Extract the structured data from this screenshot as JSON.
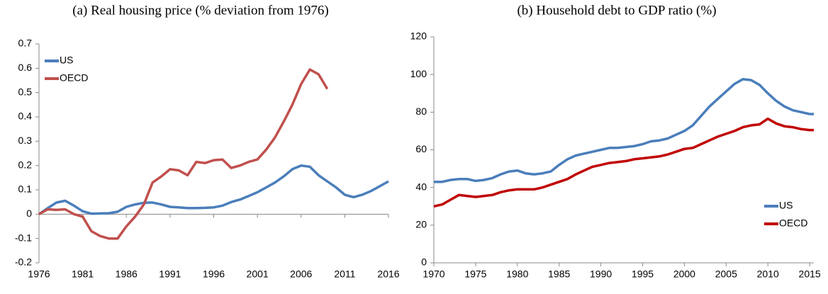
{
  "chart_data": [
    {
      "type": "line",
      "title": "(a) Real housing price (% deviation from 1976)",
      "x": [
        1976,
        1977,
        1978,
        1979,
        1980,
        1981,
        1982,
        1983,
        1984,
        1985,
        1986,
        1987,
        1988,
        1989,
        1990,
        1991,
        1992,
        1993,
        1994,
        1995,
        1996,
        1997,
        1998,
        1999,
        2000,
        2001,
        2002,
        2003,
        2004,
        2005,
        2006,
        2007,
        2008,
        2009,
        2010,
        2011,
        2012,
        2013,
        2014,
        2015,
        2016
      ],
      "series": [
        {
          "name": "US",
          "color": "#4a7ebb",
          "values": [
            0,
            0.025,
            0.048,
            0.055,
            0.035,
            0.012,
            0.002,
            0.003,
            0.004,
            0.01,
            0.03,
            0.04,
            0.047,
            0.048,
            0.04,
            0.03,
            0.028,
            0.025,
            0.025,
            0.026,
            0.028,
            0.035,
            0.05,
            0.06,
            0.075,
            0.09,
            0.11,
            0.13,
            0.155,
            0.185,
            0.2,
            0.195,
            0.16,
            0.135,
            0.11,
            0.08,
            0.07,
            0.08,
            0.095,
            0.115,
            0.135
          ]
        },
        {
          "name": "OECD",
          "color": "#c0504d",
          "values": [
            0,
            0.02,
            0.018,
            0.02,
            0,
            -0.01,
            -0.07,
            -0.09,
            -0.1,
            -0.1,
            -0.05,
            -0.01,
            0.04,
            0.13,
            0.155,
            0.185,
            0.18,
            0.16,
            0.215,
            0.21,
            0.222,
            0.225,
            0.19,
            0.2,
            0.215,
            0.225,
            0.265,
            0.315,
            0.38,
            0.45,
            0.535,
            0.595,
            0.575,
            0.515,
            null,
            null,
            null,
            null,
            null,
            null,
            null
          ]
        }
      ],
      "xlim": [
        1976,
        2016
      ],
      "xticks": [
        1976,
        1981,
        1986,
        1991,
        1996,
        2001,
        2006,
        2011,
        2016
      ],
      "ylim": [
        -0.2,
        0.7
      ],
      "yticks": [
        -0.2,
        -0.1,
        0,
        0.1,
        0.2,
        0.3,
        0.4,
        0.5,
        0.6,
        0.7
      ],
      "grid": false,
      "legend": "upper left"
    },
    {
      "type": "line",
      "title": "(b) Household debt to GDP ratio (%)",
      "x": [
        1970,
        1971,
        1972,
        1973,
        1974,
        1975,
        1976,
        1977,
        1978,
        1979,
        1980,
        1981,
        1982,
        1983,
        1984,
        1985,
        1986,
        1987,
        1988,
        1989,
        1990,
        1991,
        1992,
        1993,
        1994,
        1995,
        1996,
        1997,
        1998,
        1999,
        2000,
        2001,
        2002,
        2003,
        2004,
        2005,
        2006,
        2007,
        2008,
        2009,
        2010,
        2011,
        2012,
        2013,
        2014,
        2015,
        2015.5
      ],
      "series": [
        {
          "name": "US",
          "color": "#4a7ebb",
          "values": [
            43,
            43,
            44,
            44.5,
            44.5,
            43.5,
            44,
            45,
            47,
            48.5,
            49,
            47.5,
            47,
            47.5,
            48.5,
            52,
            55,
            57,
            58,
            59,
            60,
            61,
            61,
            61.5,
            62,
            63,
            64.5,
            65,
            66,
            68,
            70,
            73,
            78,
            83,
            87,
            91,
            95,
            97.5,
            97,
            94.5,
            90,
            86,
            83,
            81,
            80,
            79,
            79
          ]
        },
        {
          "name": "OECD",
          "color": "#c00000",
          "values": [
            30,
            31,
            33.5,
            36,
            35.5,
            35,
            35.5,
            36,
            37.5,
            38.5,
            39,
            39,
            39,
            40,
            41.5,
            43,
            44.5,
            47,
            49,
            51,
            52,
            53,
            53.5,
            54,
            55,
            55.5,
            56,
            56.5,
            57.5,
            59,
            60.5,
            61,
            63,
            65,
            67,
            68.5,
            70,
            72,
            73,
            73.5,
            76.5,
            74,
            72.5,
            72,
            71,
            70.5,
            70.5
          ]
        }
      ],
      "xlim": [
        1970,
        2015.5
      ],
      "xticks": [
        1970,
        1975,
        1980,
        1985,
        1990,
        1995,
        2000,
        2005,
        2010,
        2015
      ],
      "ylim": [
        0,
        120
      ],
      "yticks": [
        0,
        20,
        40,
        60,
        80,
        100,
        120
      ],
      "grid": false,
      "legend": "lower right"
    }
  ]
}
